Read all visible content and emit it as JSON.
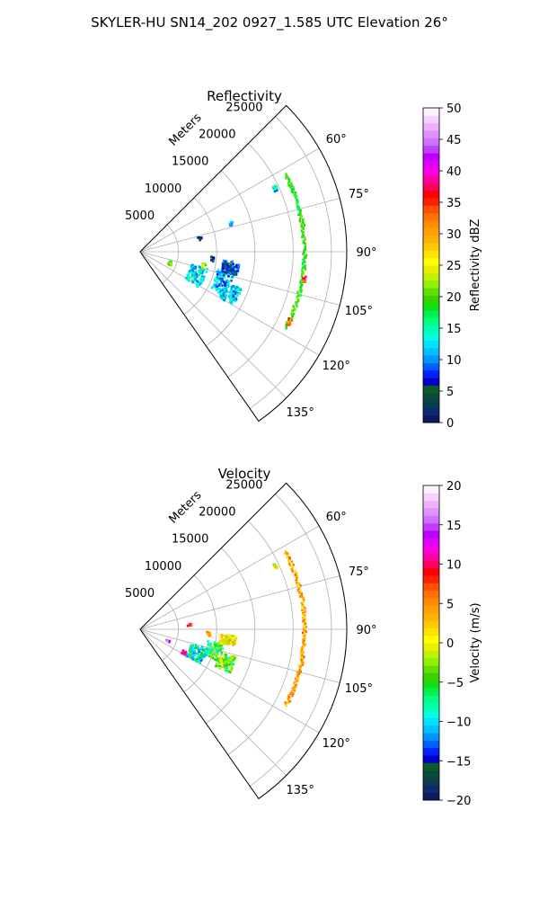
{
  "figure": {
    "title": "SKYLER-HU  SN14_202  0927_1.585 UTC Elevation 26°"
  },
  "chart_data": [
    {
      "type": "heatmap",
      "subtype": "polar-sector-ppi",
      "title": "Reflectivity",
      "range_axis_label": "Meters",
      "range_ticks": [
        5000,
        10000,
        15000,
        20000,
        25000
      ],
      "range_tick_labels": [
        "5000",
        "10000",
        "15000",
        "20000",
        "25000"
      ],
      "range_lim": [
        0,
        27000
      ],
      "azimuth_lim_deg": [
        45,
        145
      ],
      "azimuth_ticks_deg": [
        60,
        75,
        90,
        105,
        120,
        135
      ],
      "azimuth_tick_labels": [
        "60°",
        "75°",
        "90°",
        "105°",
        "120°",
        "135°"
      ],
      "grid": true,
      "colorbar": {
        "label": "Reflectivity dBZ",
        "min": 0,
        "max": 50,
        "ticks": [
          0,
          5,
          10,
          15,
          20,
          25,
          30,
          35,
          40,
          45,
          50
        ],
        "tick_labels": [
          "0",
          "5",
          "10",
          "15",
          "20",
          "25",
          "30",
          "35",
          "40",
          "45",
          "50"
        ],
        "colors": [
          "#0a1a5c",
          "#0d2a6e",
          "#0b3d50",
          "#0a4a3a",
          "#0c5c2a",
          "#0000c8",
          "#0020ff",
          "#0060ff",
          "#0098ff",
          "#00c0ff",
          "#00e0ff",
          "#00ffe0",
          "#00ffb0",
          "#00ff80",
          "#00f050",
          "#10e010",
          "#40d000",
          "#60e000",
          "#90f000",
          "#c0f000",
          "#e8f000",
          "#ffff00",
          "#ffe000",
          "#ffc800",
          "#ffb000",
          "#ffa000",
          "#ff8c00",
          "#ff7000",
          "#ff5000",
          "#ff2000",
          "#ff0000",
          "#ff0060",
          "#ff00a0",
          "#ff00e0",
          "#e000ff",
          "#c000ff",
          "#c040ff",
          "#d070ff",
          "#e090ff",
          "#f0b0ff",
          "#f8d0ff",
          "#fff0ff"
        ]
      },
      "echoes": [
        {
          "feature": "arc",
          "range_m": 21500,
          "az_start_deg": 62,
          "az_end_deg": 118,
          "value": 19
        },
        {
          "feature": "arc-hot-spot",
          "range_m": 21800,
          "az_start_deg": 98,
          "az_end_deg": 101,
          "value": 34
        },
        {
          "feature": "arc-hot-spot",
          "range_m": 21500,
          "az_start_deg": 114,
          "az_end_deg": 117,
          "value": 33
        },
        {
          "feature": "cluster",
          "range_m": 11500,
          "az_start_deg": 102,
          "az_end_deg": 118,
          "value": 11
        },
        {
          "feature": "cluster",
          "range_m": 8000,
          "az_start_deg": 104,
          "az_end_deg": 122,
          "value": 13
        },
        {
          "feature": "cluster",
          "range_m": 12000,
          "az_start_deg": 96,
          "az_end_deg": 104,
          "value": 7
        },
        {
          "feature": "cluster",
          "range_m": 13000,
          "az_start_deg": 110,
          "az_end_deg": 120,
          "value": 12
        },
        {
          "feature": "spot",
          "range_m": 4200,
          "az_start_deg": 108,
          "az_end_deg": 114,
          "value": 20
        },
        {
          "feature": "spot",
          "range_m": 9500,
          "az_start_deg": 94,
          "az_end_deg": 98,
          "value": 6
        },
        {
          "feature": "spot",
          "range_m": 8500,
          "az_start_deg": 100,
          "az_end_deg": 104,
          "value": 23
        },
        {
          "feature": "spot",
          "range_m": 8000,
          "az_start_deg": 76,
          "az_end_deg": 80,
          "value": 5
        },
        {
          "feature": "spot",
          "range_m": 12500,
          "az_start_deg": 72,
          "az_end_deg": 74,
          "value": 10
        },
        {
          "feature": "spot",
          "range_m": 19500,
          "az_start_deg": 64,
          "az_end_deg": 66,
          "value": 12
        }
      ]
    },
    {
      "type": "heatmap",
      "subtype": "polar-sector-ppi",
      "title": "Velocity",
      "range_axis_label": "Meters",
      "range_ticks": [
        5000,
        10000,
        15000,
        20000,
        25000
      ],
      "range_tick_labels": [
        "5000",
        "10000",
        "15000",
        "20000",
        "25000"
      ],
      "range_lim": [
        0,
        27000
      ],
      "azimuth_lim_deg": [
        45,
        145
      ],
      "azimuth_ticks_deg": [
        60,
        75,
        90,
        105,
        120,
        135
      ],
      "azimuth_tick_labels": [
        "60°",
        "75°",
        "90°",
        "105°",
        "120°",
        "135°"
      ],
      "grid": true,
      "colorbar": {
        "label": "Velocity (m/s)",
        "min": -20,
        "max": 20,
        "ticks": [
          -20,
          -15,
          -10,
          -5,
          0,
          5,
          10,
          15,
          20
        ],
        "tick_labels": [
          "−20",
          "−15",
          "−10",
          "−5",
          "0",
          "5",
          "10",
          "15",
          "20"
        ],
        "colors": [
          "#0a1a5c",
          "#0d2a6e",
          "#0b3d50",
          "#0a4a3a",
          "#0c5c2a",
          "#0000c8",
          "#0020ff",
          "#0060ff",
          "#0098ff",
          "#00c0ff",
          "#00e0ff",
          "#00ffe0",
          "#00ffb0",
          "#00ff80",
          "#00f050",
          "#10e010",
          "#40d000",
          "#60e000",
          "#90f000",
          "#c0f000",
          "#e8f000",
          "#ffff00",
          "#ffe000",
          "#ffc800",
          "#ffb000",
          "#ffa000",
          "#ff8c00",
          "#ff7000",
          "#ff5000",
          "#ff2000",
          "#ff0000",
          "#ff0060",
          "#ff00a0",
          "#ff00e0",
          "#e000ff",
          "#c000ff",
          "#c040ff",
          "#d070ff",
          "#e090ff",
          "#f0b0ff",
          "#f8d0ff",
          "#fff0ff"
        ]
      },
      "echoes": [
        {
          "feature": "arc",
          "range_m": 21500,
          "az_start_deg": 62,
          "az_end_deg": 118,
          "value": 4
        },
        {
          "feature": "cluster",
          "range_m": 10000,
          "az_start_deg": 100,
          "az_end_deg": 112,
          "value": -6
        },
        {
          "feature": "cluster",
          "range_m": 8000,
          "az_start_deg": 106,
          "az_end_deg": 120,
          "value": -9
        },
        {
          "feature": "cluster",
          "range_m": 12000,
          "az_start_deg": 106,
          "az_end_deg": 116,
          "value": -4
        },
        {
          "feature": "cluster",
          "range_m": 11500,
          "az_start_deg": 94,
          "az_end_deg": 100,
          "value": 1
        },
        {
          "feature": "spot",
          "range_m": 4000,
          "az_start_deg": 110,
          "az_end_deg": 114,
          "value": 15
        },
        {
          "feature": "spot",
          "range_m": 9000,
          "az_start_deg": 92,
          "az_end_deg": 96,
          "value": 3
        },
        {
          "feature": "spot",
          "range_m": 6500,
          "az_start_deg": 84,
          "az_end_deg": 86,
          "value": 9
        },
        {
          "feature": "spot",
          "range_m": 6500,
          "az_start_deg": 116,
          "az_end_deg": 120,
          "value": 13
        },
        {
          "feature": "spot",
          "range_m": 19500,
          "az_start_deg": 64,
          "az_end_deg": 66,
          "value": 1
        }
      ]
    }
  ]
}
